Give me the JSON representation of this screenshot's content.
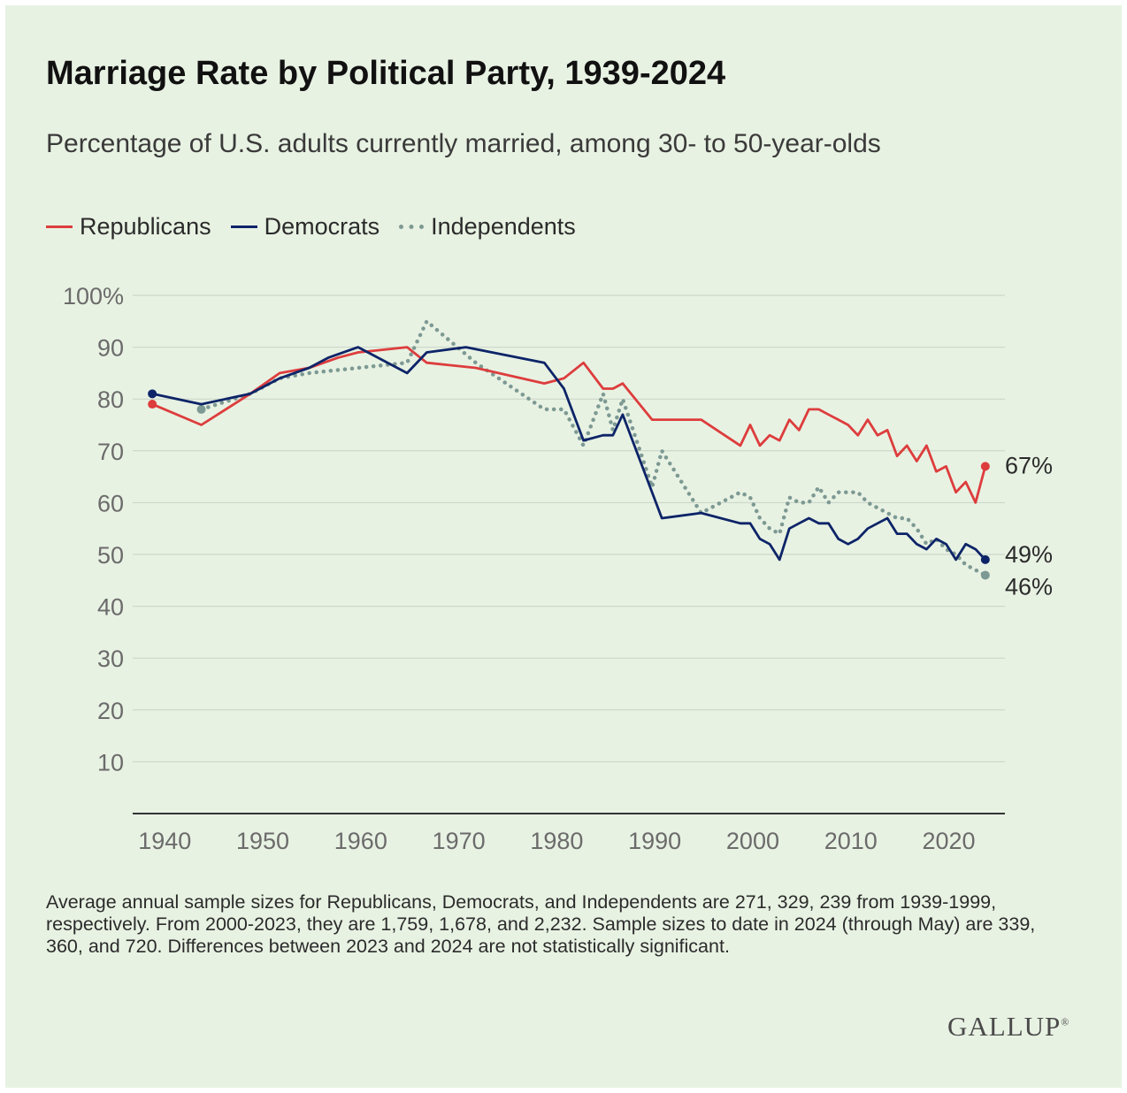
{
  "title": "Marriage Rate by Political Party, 1939-2024",
  "subtitle": "Percentage of U.S. adults currently married, among 30- to 50-year-olds",
  "footnote": "Average annual sample sizes for Republicans, Democrats, and Independents are 271, 329, 239 from 1939-1999, respectively. From 2000-2023, they are 1,759, 1,678, and 2,232. Sample sizes to date in 2024 (through May) are 339, 360, and 720. Differences between 2023 and 2024 are not statistically significant.",
  "logo": "GALLUP",
  "colors": {
    "republicans": "#dd3d3d",
    "democrats": "#0d2468",
    "independents": "#7d9993",
    "background": "#e8f2e3"
  },
  "chart_data": {
    "type": "line",
    "title": "Marriage Rate by Political Party, 1939-2024",
    "subtitle": "Percentage of U.S. adults currently married, among 30- to 50-year-olds",
    "xlabel": "",
    "ylabel": "",
    "xlim": [
      1937,
      2026
    ],
    "ylim": [
      0,
      100
    ],
    "x_ticks": [
      1940,
      1950,
      1960,
      1970,
      1980,
      1990,
      2000,
      2010,
      2020
    ],
    "y_ticks": [
      10,
      20,
      30,
      40,
      50,
      60,
      70,
      80,
      90,
      100
    ],
    "y_tick_labels": [
      "10",
      "20",
      "30",
      "40",
      "50",
      "60",
      "70",
      "80",
      "90",
      "100%"
    ],
    "grid": true,
    "legend": "top-left",
    "series": [
      {
        "name": "Republicans",
        "style": "solid",
        "end_label": "67%",
        "x": [
          1939,
          1944,
          1949,
          1952,
          1955,
          1958,
          1960,
          1965,
          1967,
          1972,
          1979,
          1981,
          1983,
          1985,
          1986,
          1987,
          1990,
          1995,
          1999,
          2000,
          2001,
          2002,
          2003,
          2004,
          2005,
          2006,
          2007,
          2008,
          2009,
          2010,
          2011,
          2012,
          2013,
          2014,
          2015,
          2016,
          2017,
          2018,
          2019,
          2020,
          2021,
          2022,
          2023,
          2024
        ],
        "y": [
          79,
          75,
          81,
          85,
          86,
          88,
          89,
          90,
          87,
          86,
          83,
          84,
          87,
          82,
          82,
          83,
          76,
          76,
          71,
          75,
          71,
          73,
          72,
          76,
          74,
          78,
          78,
          77,
          76,
          75,
          73,
          76,
          73,
          74,
          69,
          71,
          68,
          71,
          66,
          67,
          62,
          64,
          60,
          67
        ]
      },
      {
        "name": "Democrats",
        "style": "solid",
        "end_label": "49%",
        "x": [
          1939,
          1944,
          1949,
          1952,
          1955,
          1957,
          1960,
          1965,
          1967,
          1971,
          1979,
          1981,
          1983,
          1985,
          1986,
          1987,
          1991,
          1995,
          1999,
          2000,
          2001,
          2002,
          2003,
          2004,
          2005,
          2006,
          2007,
          2008,
          2009,
          2010,
          2011,
          2012,
          2013,
          2014,
          2015,
          2016,
          2017,
          2018,
          2019,
          2020,
          2021,
          2022,
          2023,
          2024
        ],
        "y": [
          81,
          79,
          81,
          84,
          86,
          88,
          90,
          85,
          89,
          90,
          87,
          82,
          72,
          73,
          73,
          77,
          57,
          58,
          56,
          56,
          53,
          52,
          49,
          55,
          56,
          57,
          56,
          56,
          53,
          52,
          53,
          55,
          56,
          57,
          54,
          54,
          52,
          51,
          53,
          52,
          49,
          52,
          51,
          49
        ]
      },
      {
        "name": "Independents",
        "style": "dotted",
        "end_label": "46%",
        "x": [
          1944,
          1949,
          1952,
          1955,
          1960,
          1965,
          1967,
          1972,
          1979,
          1981,
          1983,
          1985,
          1986,
          1987,
          1990,
          1991,
          1995,
          1999,
          2000,
          2001,
          2002,
          2003,
          2004,
          2005,
          2006,
          2007,
          2008,
          2009,
          2010,
          2011,
          2012,
          2013,
          2014,
          2015,
          2016,
          2017,
          2018,
          2019,
          2020,
          2021,
          2022,
          2023,
          2024
        ],
        "y": [
          78,
          81,
          84,
          85,
          86,
          87,
          95,
          87,
          78,
          78,
          71,
          81,
          74,
          80,
          63,
          70,
          58,
          62,
          61,
          57,
          55,
          54,
          61,
          60,
          60,
          63,
          60,
          62,
          62,
          62,
          60,
          59,
          58,
          57,
          57,
          55,
          52,
          53,
          51,
          50,
          48,
          47,
          46
        ]
      }
    ]
  }
}
